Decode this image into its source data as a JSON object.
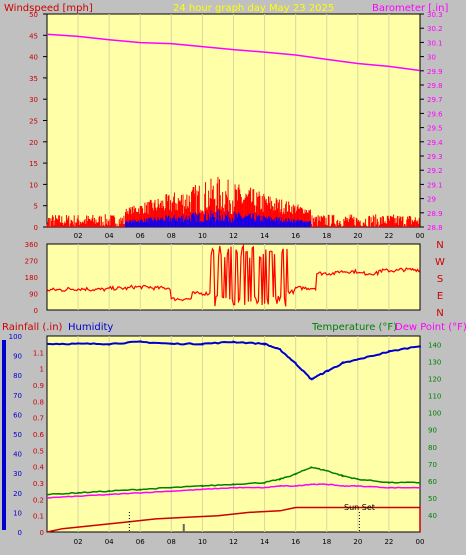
{
  "header": {
    "left_title": "Windspeed [mph]",
    "center_title": "24 hour graph day   May 23 2025",
    "right_title": "Barometer [.in]"
  },
  "colors": {
    "background": "#c0c0c0",
    "plot_bg": "#ffffa8",
    "windspeed": "#ff0000",
    "gust_detail": "#0000ff",
    "barometer": "#ff00ff",
    "temperature": "#008000",
    "dewpoint": "#ff00ff",
    "rainfall": "#cc0000",
    "humidity": "#0000cc",
    "axis_text_left": "#cc0000",
    "axis_text_right": "#ff00ff",
    "grid": "#d8d8a0"
  },
  "chart_data": [
    {
      "type": "line",
      "name_key": "wind_baro",
      "x_ticks": [
        "02",
        "04",
        "06",
        "08",
        "10",
        "12",
        "14",
        "16",
        "18",
        "20",
        "22",
        "00"
      ],
      "y_left": {
        "label": "Windspeed [mph]",
        "ticks": [
          0,
          5,
          10,
          15,
          20,
          25,
          30,
          35,
          40,
          45,
          50
        ],
        "range": [
          0,
          50
        ]
      },
      "y_right": {
        "label": "Barometer [.in]",
        "ticks": [
          "28.8",
          "28.9",
          "29",
          "29.1",
          "29.2",
          "29.3",
          "29.4",
          "29.5",
          "29.6",
          "29.7",
          "29.8",
          "29.9",
          "30",
          "30.1",
          "30.2",
          "30.3"
        ],
        "range": [
          28.8,
          30.3
        ]
      },
      "series": [
        {
          "name": "Barometer",
          "axis": "right",
          "x_hours": [
            0,
            2,
            4,
            6,
            8,
            10,
            12,
            14,
            16,
            18,
            20,
            22,
            24
          ],
          "values": [
            30.16,
            30.14,
            30.12,
            30.1,
            30.09,
            30.07,
            30.05,
            30.03,
            30.01,
            29.98,
            29.95,
            29.93,
            29.9
          ]
        }
      ],
      "wind_activity": {
        "peak_mph": 12,
        "typical_mph": 3
      }
    },
    {
      "type": "line",
      "name_key": "wind_direction",
      "y_left": {
        "ticks": [
          0,
          90,
          180,
          270,
          360
        ],
        "range": [
          0,
          360
        ]
      },
      "compass": [
        "N",
        "W",
        "S",
        "E",
        "N"
      ],
      "direction_samples_deg": [
        110,
        115,
        112,
        118,
        125,
        120,
        60,
        90,
        95,
        100,
        95,
        100,
        120,
        200,
        210,
        200,
        215,
        220
      ]
    },
    {
      "type": "line",
      "name_key": "temp_rain_hum",
      "x_ticks": [
        "02",
        "04",
        "06",
        "08",
        "10",
        "12",
        "14",
        "16",
        "18",
        "20",
        "22",
        "00"
      ],
      "labels": {
        "rainfall": "Rainfall (.in)",
        "humidity": "Humidity",
        "temperature": "Temperature (°F)",
        "dewpoint": "Dew Point (°F)"
      },
      "y_humidity": {
        "ticks": [
          0,
          10,
          20,
          30,
          40,
          50,
          60,
          70,
          80,
          90,
          100
        ],
        "range": [
          0,
          100
        ]
      },
      "y_rain": {
        "ticks": [
          "0",
          "0.1",
          "0.2",
          "0.3",
          "0.4",
          "0.5",
          "0.6",
          "0.7",
          "0.8",
          "0.9",
          "1",
          "1.1"
        ],
        "range": [
          0,
          1.2
        ]
      },
      "y_temp": {
        "ticks": [
          40,
          50,
          60,
          70,
          80,
          90,
          100,
          110,
          120,
          130,
          140
        ],
        "range": [
          30,
          145
        ]
      },
      "annotation": "Sun Set",
      "series": [
        {
          "name": "Humidity",
          "x_hours": [
            0,
            2,
            4,
            6,
            8,
            10,
            12,
            14,
            15,
            16,
            17,
            18,
            19,
            20,
            22,
            24
          ],
          "values": [
            96,
            96,
            96,
            97,
            96,
            96,
            97,
            96,
            93,
            86,
            78,
            82,
            86,
            88,
            92,
            95
          ]
        },
        {
          "name": "Temperature",
          "x_hours": [
            0,
            2,
            4,
            6,
            8,
            10,
            12,
            14,
            15,
            16,
            17,
            18,
            19,
            20,
            22,
            24
          ],
          "values": [
            52,
            53,
            54,
            55,
            56,
            57,
            58,
            59,
            61,
            64,
            68,
            66,
            63,
            61,
            59,
            59
          ]
        },
        {
          "name": "Dew Point",
          "x_hours": [
            0,
            2,
            4,
            6,
            8,
            10,
            12,
            14,
            15,
            16,
            17,
            18,
            19,
            20,
            22,
            24
          ],
          "values": [
            50,
            51,
            52,
            53,
            54,
            55,
            56,
            56,
            57,
            57,
            58,
            58,
            57,
            57,
            56,
            56
          ]
        },
        {
          "name": "Rainfall",
          "x_hours": [
            0,
            1,
            3,
            5,
            7,
            9,
            11,
            13,
            15,
            16,
            17,
            24,
            24
          ],
          "values": [
            0,
            0.02,
            0.04,
            0.06,
            0.08,
            0.09,
            0.1,
            0.12,
            0.13,
            0.15,
            0.15,
            0.15,
            0
          ]
        }
      ]
    }
  ]
}
